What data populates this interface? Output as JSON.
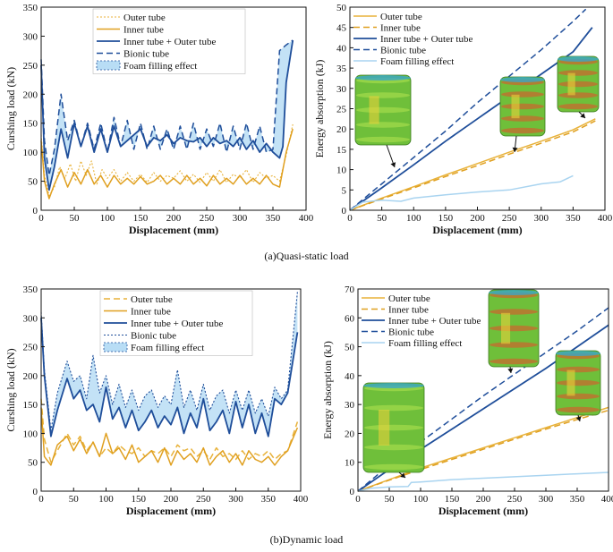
{
  "captions": {
    "a": "(a)Quasi-static load",
    "b": "(b)Dynamic load"
  },
  "colors": {
    "outer": "#E8B23A",
    "inner": "#E0A020",
    "combined": "#1F4E9A",
    "bionic": "#1F4E9A",
    "foam": "#A9D4F0",
    "foam_fill": "#B8DDF5"
  },
  "chart_data": [
    {
      "id": "a-load",
      "type": "line",
      "xlabel": "Displacement (mm)",
      "ylabel": "Curshing load (kN)",
      "xlim": [
        0,
        400
      ],
      "ylim": [
        0,
        350
      ],
      "xticks": [
        0,
        50,
        100,
        150,
        200,
        250,
        300,
        350,
        400
      ],
      "yticks": [
        0,
        50,
        100,
        150,
        200,
        250,
        300,
        350
      ],
      "legend_position": "top-center",
      "series": [
        {
          "key": "outer",
          "name": "Outer tube",
          "style": "dotted",
          "x": [
            0,
            5,
            12,
            20,
            28,
            36,
            44,
            52,
            60,
            68,
            76,
            84,
            92,
            100,
            110,
            120,
            130,
            140,
            150,
            160,
            170,
            180,
            190,
            200,
            210,
            220,
            230,
            240,
            250,
            260,
            270,
            280,
            290,
            300,
            310,
            320,
            330,
            340,
            350,
            360,
            370,
            380
          ],
          "y": [
            130,
            60,
            25,
            40,
            75,
            55,
            80,
            50,
            85,
            60,
            85,
            45,
            70,
            55,
            70,
            50,
            65,
            50,
            62,
            48,
            65,
            50,
            60,
            55,
            68,
            50,
            62,
            48,
            65,
            50,
            70,
            48,
            62,
            55,
            70,
            48,
            65,
            55,
            60,
            50,
            95,
            148
          ]
        },
        {
          "key": "inner",
          "name": "Inner tube",
          "style": "solid",
          "x": [
            0,
            5,
            12,
            20,
            30,
            40,
            50,
            60,
            70,
            80,
            90,
            100,
            110,
            120,
            130,
            140,
            150,
            160,
            170,
            180,
            190,
            200,
            210,
            220,
            230,
            240,
            250,
            260,
            270,
            280,
            290,
            300,
            310,
            320,
            330,
            340,
            350,
            360,
            370,
            380
          ],
          "y": [
            120,
            50,
            20,
            45,
            70,
            40,
            65,
            45,
            70,
            45,
            60,
            40,
            60,
            45,
            55,
            45,
            58,
            45,
            50,
            60,
            45,
            55,
            45,
            60,
            45,
            55,
            42,
            60,
            45,
            55,
            45,
            60,
            45,
            55,
            45,
            60,
            45,
            40,
            100,
            140
          ]
        },
        {
          "key": "combined",
          "name": "Inner tube + Outer tube",
          "style": "solid",
          "x": [
            0,
            5,
            12,
            20,
            30,
            40,
            50,
            60,
            70,
            80,
            90,
            100,
            110,
            120,
            130,
            140,
            150,
            160,
            170,
            180,
            190,
            200,
            210,
            220,
            230,
            240,
            250,
            260,
            270,
            280,
            290,
            300,
            310,
            320,
            330,
            340,
            350,
            360,
            365,
            370,
            380
          ],
          "y": [
            250,
            90,
            35,
            75,
            140,
            90,
            150,
            110,
            145,
            100,
            140,
            100,
            145,
            110,
            120,
            130,
            140,
            110,
            125,
            120,
            130,
            115,
            125,
            120,
            118,
            125,
            110,
            125,
            115,
            120,
            110,
            125,
            105,
            120,
            100,
            115,
            100,
            90,
            110,
            220,
            293
          ]
        },
        {
          "key": "bionic",
          "name": "Bionic tube",
          "style": "dashed",
          "x": [
            0,
            5,
            12,
            20,
            30,
            40,
            50,
            60,
            70,
            80,
            90,
            100,
            110,
            120,
            130,
            140,
            150,
            160,
            170,
            180,
            190,
            200,
            210,
            220,
            230,
            240,
            250,
            260,
            270,
            280,
            290,
            300,
            310,
            320,
            330,
            340,
            350,
            360,
            370,
            380
          ],
          "y": [
            260,
            120,
            60,
            105,
            200,
            120,
            155,
            110,
            150,
            105,
            150,
            100,
            160,
            110,
            155,
            105,
            150,
            105,
            145,
            105,
            140,
            105,
            145,
            105,
            150,
            105,
            140,
            110,
            150,
            100,
            145,
            105,
            150,
            105,
            145,
            100,
            105,
            275,
            285,
            293
          ]
        }
      ],
      "fill_label": "Foam filling effect"
    },
    {
      "id": "a-energy",
      "type": "line",
      "xlabel": "Displacement (mm)",
      "ylabel": "Energy absorption (kJ)",
      "xlim": [
        0,
        400
      ],
      "ylim": [
        0,
        50
      ],
      "xticks": [
        0,
        50,
        100,
        150,
        200,
        250,
        300,
        350,
        400
      ],
      "yticks": [
        0,
        5,
        10,
        15,
        20,
        25,
        30,
        35,
        40,
        45,
        50
      ],
      "legend_position": "top-left",
      "series": [
        {
          "key": "outer",
          "name": "Outer tube",
          "style": "solid",
          "x": [
            0,
            50,
            100,
            150,
            200,
            250,
            300,
            350,
            385
          ],
          "y": [
            0,
            3,
            5.8,
            8.7,
            11.5,
            14.3,
            17,
            19.8,
            22.5
          ]
        },
        {
          "key": "inner",
          "name": "Inner tube",
          "style": "dashed",
          "x": [
            0,
            50,
            100,
            150,
            200,
            250,
            300,
            350,
            385
          ],
          "y": [
            0,
            2.8,
            5.5,
            8.3,
            11,
            13.8,
            16.5,
            19.3,
            22
          ]
        },
        {
          "key": "combined",
          "name": "Inner tube + Outer tube",
          "style": "solid",
          "x": [
            0,
            50,
            100,
            150,
            200,
            250,
            300,
            350,
            380
          ],
          "y": [
            0,
            5.5,
            11.2,
            17,
            22.5,
            28,
            33.5,
            39,
            45
          ]
        },
        {
          "key": "bionic",
          "name": "Bionic tube",
          "style": "dashed",
          "x": [
            0,
            50,
            100,
            150,
            200,
            250,
            300,
            350,
            370
          ],
          "y": [
            0,
            6.5,
            13,
            19.5,
            26.5,
            33,
            39.5,
            46.5,
            49.5
          ]
        },
        {
          "key": "foam",
          "name": "Foam filling effect",
          "style": "solid",
          "x": [
            0,
            20,
            50,
            80,
            100,
            150,
            200,
            250,
            300,
            330,
            350
          ],
          "y": [
            0,
            2,
            2.5,
            2.2,
            3,
            3.8,
            4.5,
            5,
            6.5,
            7,
            8.5
          ]
        }
      ]
    },
    {
      "id": "b-load",
      "type": "line",
      "xlabel": "Displacement (mm)",
      "ylabel": "Curshing load (kN)",
      "xlim": [
        0,
        400
      ],
      "ylim": [
        0,
        350
      ],
      "xticks": [
        0,
        50,
        100,
        150,
        200,
        250,
        300,
        350,
        400
      ],
      "yticks": [
        0,
        50,
        100,
        150,
        200,
        250,
        300,
        350
      ],
      "legend_position": "top-center",
      "series": [
        {
          "key": "outer",
          "name": "Outer tube",
          "style": "dashed",
          "x": [
            0,
            5,
            15,
            25,
            40,
            50,
            60,
            70,
            80,
            90,
            100,
            110,
            120,
            130,
            140,
            150,
            160,
            170,
            180,
            190,
            200,
            210,
            220,
            230,
            240,
            250,
            260,
            270,
            280,
            290,
            300,
            310,
            320,
            330,
            340,
            350,
            360,
            370,
            380,
            395
          ],
          "y": [
            160,
            90,
            50,
            70,
            100,
            80,
            95,
            70,
            85,
            60,
            75,
            65,
            80,
            70,
            65,
            75,
            60,
            70,
            65,
            75,
            60,
            80,
            70,
            75,
            60,
            70,
            55,
            75,
            60,
            65,
            55,
            70,
            55,
            65,
            60,
            70,
            55,
            65,
            70,
            120
          ]
        },
        {
          "key": "inner",
          "name": "Inner tube",
          "style": "solid",
          "x": [
            0,
            5,
            15,
            25,
            40,
            50,
            60,
            70,
            80,
            90,
            100,
            110,
            120,
            130,
            140,
            150,
            160,
            170,
            180,
            190,
            200,
            210,
            220,
            230,
            240,
            250,
            260,
            270,
            280,
            290,
            300,
            310,
            320,
            330,
            340,
            350,
            360,
            370,
            380,
            395
          ],
          "y": [
            145,
            60,
            45,
            80,
            95,
            70,
            90,
            65,
            85,
            60,
            100,
            65,
            75,
            55,
            80,
            50,
            60,
            70,
            50,
            75,
            45,
            70,
            55,
            65,
            50,
            75,
            45,
            60,
            70,
            50,
            65,
            45,
            70,
            55,
            50,
            60,
            45,
            60,
            70,
            110
          ]
        },
        {
          "key": "combined",
          "name": "Inner tube + Outer tube",
          "style": "solid",
          "x": [
            0,
            5,
            15,
            25,
            40,
            50,
            60,
            70,
            80,
            90,
            100,
            110,
            120,
            130,
            140,
            150,
            160,
            170,
            180,
            190,
            200,
            210,
            220,
            230,
            240,
            250,
            260,
            270,
            280,
            290,
            300,
            310,
            320,
            330,
            340,
            350,
            360,
            370,
            380,
            395
          ],
          "y": [
            300,
            200,
            95,
            140,
            195,
            160,
            175,
            140,
            150,
            120,
            180,
            125,
            145,
            110,
            140,
            105,
            120,
            140,
            110,
            130,
            115,
            145,
            100,
            135,
            110,
            160,
            105,
            120,
            140,
            100,
            155,
            110,
            150,
            100,
            135,
            95,
            160,
            150,
            170,
            275
          ]
        },
        {
          "key": "bionic",
          "name": "Bionic tube",
          "style": "dotted",
          "x": [
            0,
            5,
            15,
            25,
            40,
            50,
            60,
            70,
            80,
            90,
            100,
            110,
            120,
            130,
            140,
            150,
            160,
            170,
            180,
            190,
            200,
            210,
            220,
            230,
            240,
            250,
            260,
            270,
            280,
            290,
            300,
            310,
            320,
            330,
            340,
            350,
            360,
            370,
            380,
            395
          ],
          "y": [
            310,
            210,
            105,
            170,
            225,
            190,
            200,
            160,
            235,
            170,
            200,
            150,
            185,
            145,
            175,
            140,
            165,
            175,
            145,
            165,
            150,
            210,
            145,
            175,
            140,
            185,
            140,
            165,
            175,
            135,
            175,
            140,
            175,
            135,
            160,
            130,
            180,
            160,
            175,
            345
          ]
        }
      ],
      "fill_label": "Foam filling effect"
    },
    {
      "id": "b-energy",
      "type": "line",
      "xlabel": "Displacement (mm)",
      "ylabel": "Energy absorption (kJ)",
      "xlim": [
        0,
        400
      ],
      "ylim": [
        0,
        70
      ],
      "xticks": [
        0,
        50,
        100,
        150,
        200,
        250,
        300,
        350,
        400
      ],
      "yticks": [
        0,
        10,
        20,
        30,
        40,
        50,
        60,
        70
      ],
      "legend_position": "top-left",
      "series": [
        {
          "key": "outer",
          "name": "Outer tube",
          "style": "solid",
          "x": [
            0,
            50,
            100,
            150,
            200,
            250,
            300,
            350,
            400
          ],
          "y": [
            0,
            4,
            8,
            11.5,
            15,
            18.5,
            22,
            25.5,
            29
          ]
        },
        {
          "key": "inner",
          "name": "Inner tube",
          "style": "dashed",
          "x": [
            0,
            50,
            100,
            150,
            200,
            250,
            300,
            350,
            400
          ],
          "y": [
            0,
            3.8,
            7.5,
            11,
            14.5,
            18,
            21.5,
            24.8,
            28
          ]
        },
        {
          "key": "combined",
          "name": "Inner tube + Outer tube",
          "style": "solid",
          "x": [
            0,
            50,
            100,
            150,
            200,
            250,
            300,
            350,
            400
          ],
          "y": [
            0,
            7.5,
            14.5,
            21.5,
            28.5,
            35.5,
            42.5,
            50,
            57.5
          ]
        },
        {
          "key": "bionic",
          "name": "Bionic tube",
          "style": "dashed",
          "x": [
            0,
            50,
            100,
            150,
            200,
            250,
            300,
            350,
            400
          ],
          "y": [
            0,
            9,
            17,
            25,
            33,
            40.5,
            48,
            55.5,
            63.5
          ]
        },
        {
          "key": "foam",
          "name": "Foam filling effect",
          "style": "solid",
          "x": [
            0,
            20,
            50,
            80,
            85,
            100,
            150,
            200,
            250,
            300,
            350,
            400
          ],
          "y": [
            0,
            1,
            1.5,
            1.6,
            3,
            3.2,
            4,
            4.5,
            5,
            5.5,
            6,
            6.5
          ]
        }
      ]
    }
  ]
}
